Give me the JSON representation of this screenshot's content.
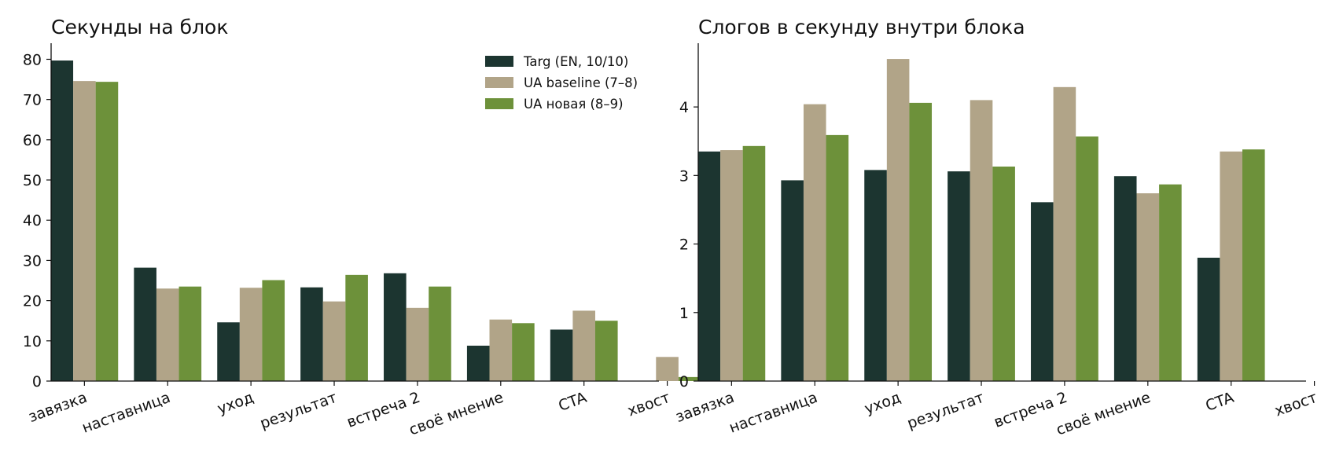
{
  "chart_data": [
    {
      "type": "bar",
      "title": "Секунды на блок",
      "xlabel": "",
      "ylabel": "",
      "categories": [
        "завязка",
        "наставница",
        "уход",
        "результат",
        "встреча 2",
        "своё мнение",
        "CTA",
        "хвост"
      ],
      "ylim": [
        0,
        84
      ],
      "yticks": [
        0,
        10,
        20,
        30,
        40,
        50,
        60,
        70,
        80
      ],
      "legend": "top-right",
      "grid": false,
      "series": [
        {
          "name": "Targ (EN, 10/10)",
          "color": "#1c3530",
          "values": [
            79.7,
            28.2,
            14.6,
            23.3,
            26.8,
            8.8,
            12.8,
            null
          ]
        },
        {
          "name": "UA baseline (7–8)",
          "color": "#b1a488",
          "values": [
            74.6,
            23.0,
            23.2,
            19.8,
            18.2,
            15.3,
            17.5,
            6.0
          ]
        },
        {
          "name": "UA новая (8–9)",
          "color": "#6d913a",
          "values": [
            74.4,
            23.5,
            25.1,
            26.4,
            23.5,
            14.4,
            15.0,
            1.0
          ]
        }
      ]
    },
    {
      "type": "bar",
      "title": "Слогов в секунду внутри блока",
      "xlabel": "",
      "ylabel": "",
      "categories": [
        "завязка",
        "наставница",
        "уход",
        "результат",
        "встреча 2",
        "своё мнение",
        "CTA",
        "хвост"
      ],
      "ylim": [
        0,
        4.93
      ],
      "yticks": [
        0,
        1,
        2,
        3,
        4
      ],
      "legend": "none",
      "grid": false,
      "series": [
        {
          "name": "Targ (EN, 10/10)",
          "color": "#1c3530",
          "values": [
            3.35,
            2.93,
            3.08,
            3.06,
            2.61,
            2.99,
            1.8,
            null
          ]
        },
        {
          "name": "UA baseline (7–8)",
          "color": "#b1a488",
          "values": [
            3.37,
            4.04,
            4.7,
            4.1,
            4.29,
            2.74,
            3.35,
            null
          ]
        },
        {
          "name": "UA новая (8–9)",
          "color": "#6d913a",
          "values": [
            3.43,
            3.59,
            4.06,
            3.13,
            3.57,
            2.87,
            3.38,
            null
          ]
        }
      ]
    }
  ]
}
